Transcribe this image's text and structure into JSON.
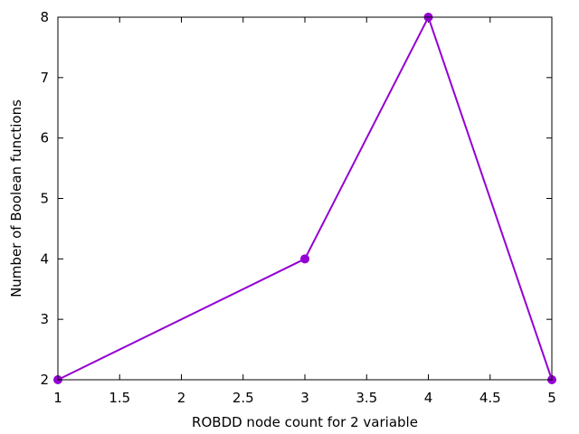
{
  "chart_data": {
    "type": "line",
    "title": "",
    "xlabel": "ROBDD node count for 2 variable",
    "ylabel": "Number of Boolean functions",
    "xlim": [
      1,
      5
    ],
    "ylim": [
      2,
      8
    ],
    "x_ticks": [
      1,
      1.5,
      2,
      2.5,
      3,
      3.5,
      4,
      4.5,
      5
    ],
    "x_tick_labels": [
      "1",
      "1.5",
      "2",
      "2.5",
      "3",
      "3.5",
      "4",
      "4.5",
      "5"
    ],
    "y_ticks": [
      2,
      3,
      4,
      5,
      6,
      7,
      8
    ],
    "y_tick_labels": [
      "2",
      "3",
      "4",
      "5",
      "6",
      "7",
      "8"
    ],
    "grid": false,
    "legend": "none",
    "series": [
      {
        "color": "#9400d3",
        "marker": "circle",
        "x": [
          1,
          3,
          4,
          5
        ],
        "y": [
          2,
          4,
          8,
          2
        ]
      }
    ]
  }
}
